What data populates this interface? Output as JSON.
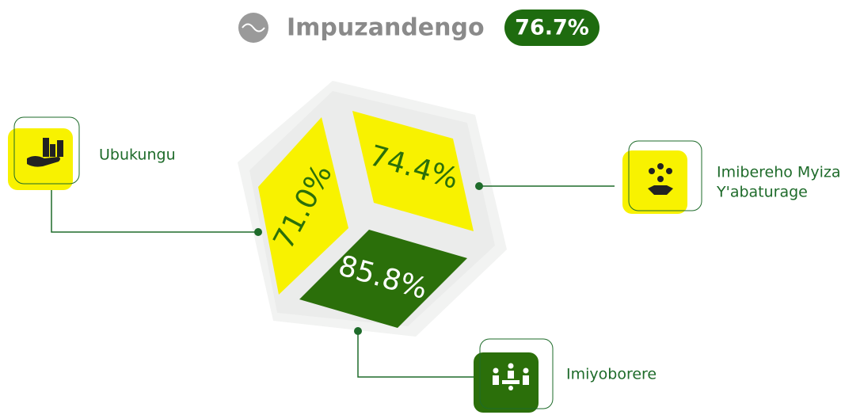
{
  "header": {
    "title": "Impuzandengo",
    "value": "76.7%"
  },
  "pillars": [
    {
      "label": [
        "Ubukungu"
      ],
      "value": "71.0%"
    },
    {
      "label": [
        "Imibereho Myiza",
        "Y'abaturage"
      ],
      "value": "74.4%"
    },
    {
      "label": [
        "Imiyoborere"
      ],
      "value": "85.8%"
    }
  ]
}
